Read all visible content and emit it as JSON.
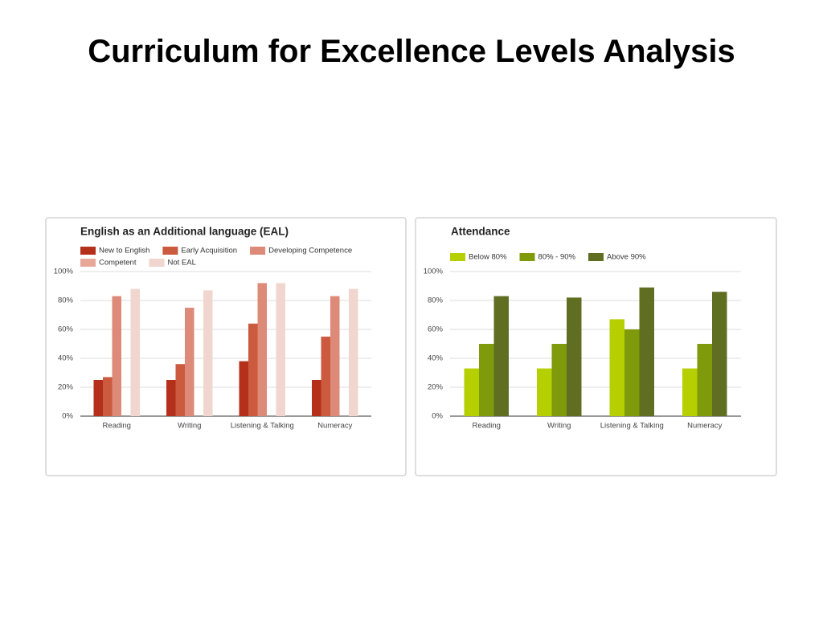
{
  "title": "Curriculum for Excellence Levels Analysis",
  "chart_data": [
    {
      "type": "bar",
      "title": "English as an Additional language (EAL)",
      "categories": [
        "Reading",
        "Writing",
        "Listening & Talking",
        "Numeracy"
      ],
      "series": [
        {
          "name": "New to English",
          "color": "#b5301a",
          "values": [
            25,
            25,
            38,
            25
          ]
        },
        {
          "name": "Early Acquisition",
          "color": "#cc5a3e",
          "values": [
            27,
            36,
            64,
            55
          ]
        },
        {
          "name": "Developing Competence",
          "color": "#dd8a78",
          "values": [
            83,
            75,
            92,
            83
          ]
        },
        {
          "name": "Competent",
          "color": "#e8a898",
          "values": [
            null,
            null,
            null,
            null
          ]
        },
        {
          "name": "Not EAL",
          "color": "#f0d6cf",
          "values": [
            88,
            87,
            92,
            88
          ]
        }
      ],
      "ylim": [
        0,
        100
      ],
      "yticks": [
        {
          "value": 0,
          "label": "0%"
        },
        {
          "value": 20,
          "label": "20%"
        },
        {
          "value": 40,
          "label": "40%"
        },
        {
          "value": 60,
          "label": "60%"
        },
        {
          "value": 80,
          "label": "80%"
        },
        {
          "value": 100,
          "label": "100%"
        }
      ],
      "grid": true,
      "legend": "top"
    },
    {
      "type": "bar",
      "title": "Attendance",
      "categories": [
        "Reading",
        "Writing",
        "Listening & Talking",
        "Numeracy"
      ],
      "series": [
        {
          "name": "Below 80%",
          "color": "#b6cf00",
          "values": [
            33,
            33,
            67,
            33
          ]
        },
        {
          "name": "80% - 90%",
          "color": "#7f9a0b",
          "values": [
            50,
            50,
            60,
            50
          ]
        },
        {
          "name": "Above 90%",
          "color": "#5f6e21",
          "values": [
            83,
            82,
            89,
            86
          ]
        }
      ],
      "ylim": [
        0,
        100
      ],
      "yticks": [
        {
          "value": 0,
          "label": "0%"
        },
        {
          "value": 20,
          "label": "20%"
        },
        {
          "value": 40,
          "label": "40%"
        },
        {
          "value": 60,
          "label": "60%"
        },
        {
          "value": 80,
          "label": "80%"
        },
        {
          "value": 100,
          "label": "100%"
        }
      ],
      "grid": true,
      "legend": "top"
    }
  ]
}
